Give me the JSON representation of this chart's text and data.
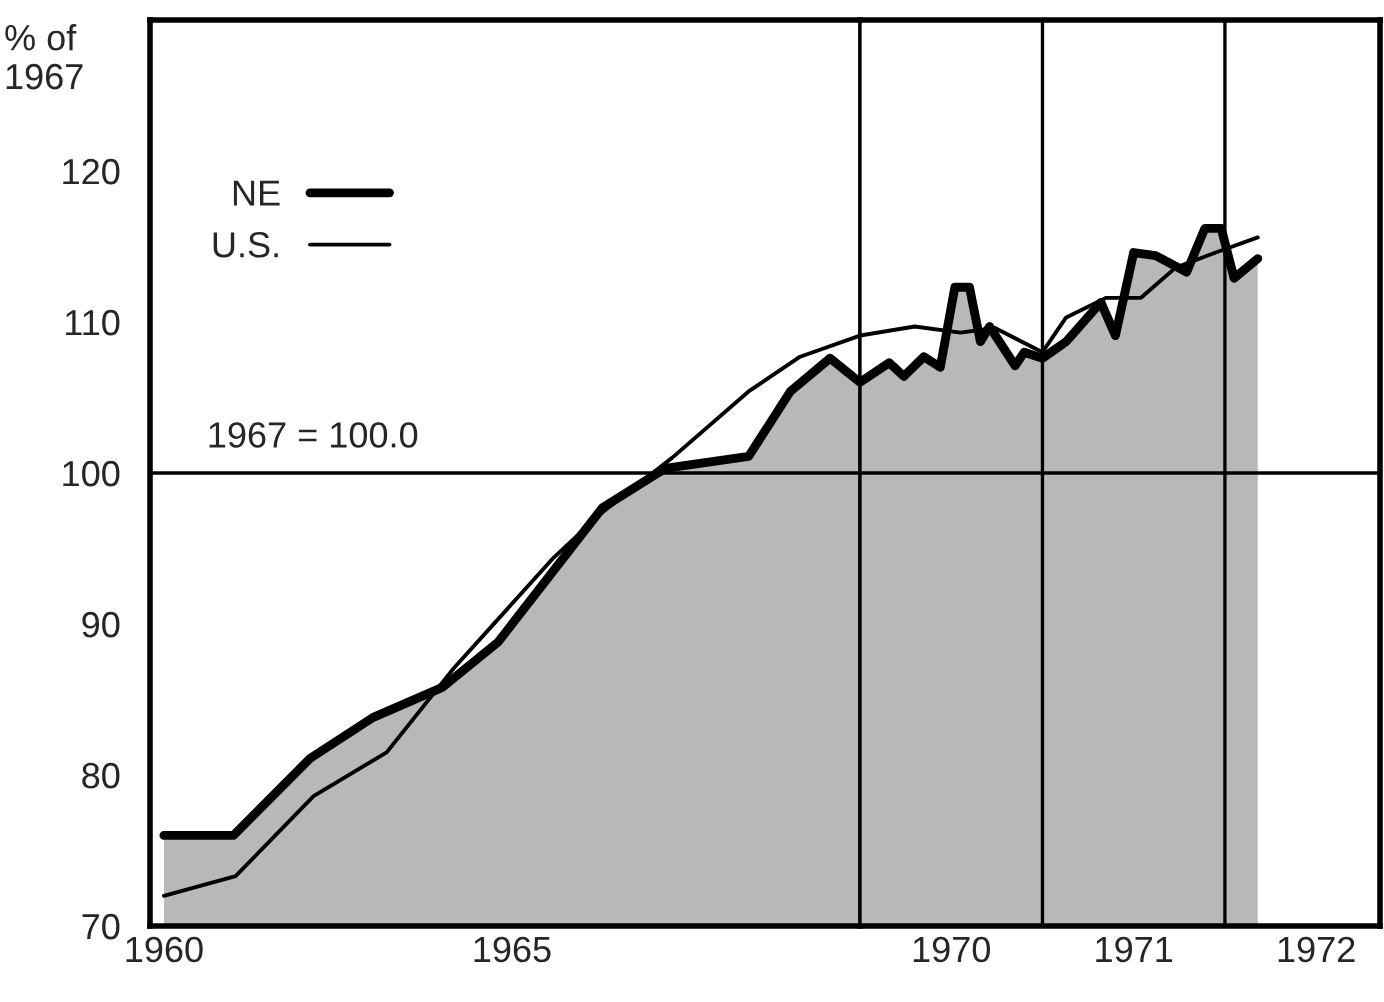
{
  "chart_data": [
    {
      "type": "line",
      "ylabel": "% of\n1967",
      "xlim": [
        1959.8,
        1970
      ],
      "ylim": [
        70,
        130
      ],
      "xticks": [
        1960,
        1965
      ],
      "yticks": [
        70,
        80,
        90,
        100,
        110,
        120
      ],
      "series": [
        {
          "name": "NE",
          "type": "area",
          "color": "#000000",
          "x": [
            1960,
            1961.0,
            1962.1,
            1963.0,
            1964.0,
            1964.8,
            1966.3,
            1967.2,
            1968.4,
            1969.0,
            1969.57,
            1970.0
          ],
          "values": [
            76.0,
            76.0,
            81.1,
            83.8,
            85.8,
            88.8,
            97.7,
            100.3,
            101.1,
            105.4,
            107.6,
            106.0
          ]
        },
        {
          "name": "U.S.",
          "color": "#000000",
          "x": [
            1960,
            1961.03,
            1962.15,
            1963.2,
            1964.17,
            1965.6,
            1966.3,
            1967.3,
            1968.4,
            1969.14,
            1970.0
          ],
          "values": [
            72.0,
            73.3,
            78.6,
            81.5,
            87.1,
            94.4,
            97.4,
            101.0,
            105.4,
            107.7,
            109.1
          ]
        }
      ],
      "ref_lines": [
        {
          "axis": "y",
          "value": 100,
          "label": "1967 = 100.0"
        }
      ],
      "legend": "top left",
      "grid": false
    },
    {
      "type": "line",
      "xlim": [
        1970,
        1972.85
      ],
      "ylim": [
        70,
        130
      ],
      "tick_labels": "x",
      "xticks": [
        {
          "value": 1970.5,
          "label": "1970"
        },
        {
          "value": 1971.5,
          "label": "1971"
        },
        {
          "value": 1972.5,
          "label": "1972"
        }
      ],
      "series": [
        {
          "type": "area",
          "color": "#000000",
          "x": [
            1970.0,
            1970.16,
            1970.24,
            1970.35,
            1970.44,
            1970.52,
            1970.6,
            1970.66,
            1970.71,
            1970.85,
            1970.9,
            1971.0,
            1971.13,
            1971.32,
            1971.4,
            1971.5,
            1971.62,
            1971.79,
            1971.89,
            1971.98,
            1972.05,
            1972.18
          ],
          "values": [
            106.0,
            107.3,
            106.4,
            107.7,
            107.0,
            112.3,
            112.3,
            108.7,
            109.7,
            107.1,
            108.0,
            107.6,
            108.7,
            111.3,
            109.1,
            114.6,
            114.4,
            113.3,
            116.2,
            116.2,
            112.9,
            114.2
          ]
        },
        {
          "color": "#000000",
          "x": [
            1970.0,
            1970.3,
            1970.55,
            1970.74,
            1971.0,
            1971.13,
            1971.35,
            1971.54,
            1971.73,
            1971.95,
            1972.18
          ],
          "values": [
            109.1,
            109.7,
            109.3,
            109.6,
            108.0,
            110.3,
            111.6,
            111.6,
            113.6,
            114.6,
            115.6
          ]
        }
      ],
      "ref_lines": [
        {
          "axis": "y",
          "value": 100
        },
        {
          "axis": "x",
          "value": 1971
        },
        {
          "axis": "x",
          "value": 1972
        }
      ],
      "grid": false
    }
  ]
}
